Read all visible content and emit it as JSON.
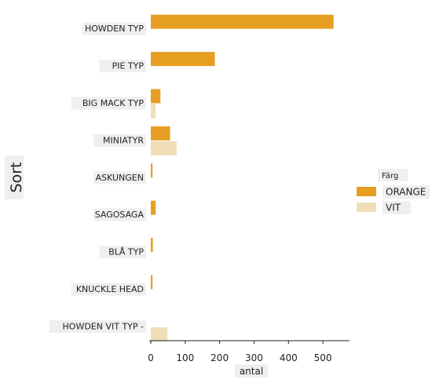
{
  "chart_data": {
    "type": "bar",
    "orientation": "horizontal",
    "ylabel": "Sort",
    "xlabel": "antal",
    "categories": [
      "HOWDEN TYP",
      "PIE TYP",
      "BIG MACK TYP",
      "MINIATYR",
      "ASKUNGEN",
      "SAGOSAGA",
      "BLÅ TYP",
      "KNUCKLE HEAD",
      "HOWDEN VIT TYP -"
    ],
    "series": [
      {
        "name": "ORANGE",
        "color": "#e69f23",
        "values": [
          531,
          186,
          28,
          56,
          5,
          14,
          6,
          5,
          0
        ]
      },
      {
        "name": "VIT",
        "color": "#f0deb8",
        "values": [
          0,
          0,
          14,
          75,
          0,
          0,
          0,
          0,
          48
        ]
      }
    ],
    "xlim": [
      0,
      550
    ],
    "xticks": [
      0,
      100,
      200,
      300,
      400,
      500
    ],
    "legend": {
      "title": "Färg",
      "placement": "right"
    },
    "grid": false
  }
}
